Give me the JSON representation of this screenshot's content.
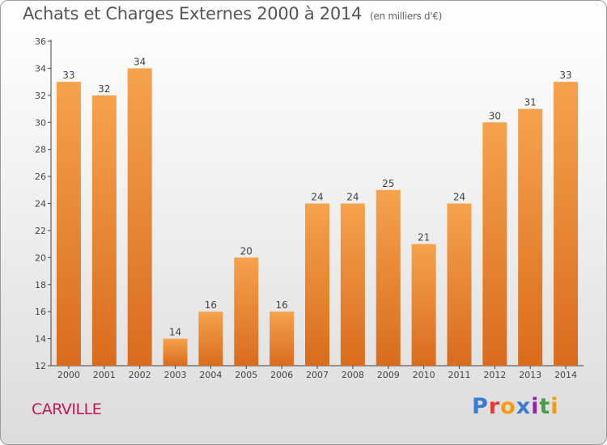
{
  "title": "Achats et Charges Externes 2000 à 2014",
  "unit": "(en milliers d'€)",
  "place": "CARVILLE",
  "logo": {
    "text": "Proxiti",
    "colors": [
      "#3a7bd5",
      "#e53935",
      "#f39c12",
      "#3a7bd5",
      "#8e24aa",
      "#43a047",
      "#f39c12"
    ]
  },
  "colors": {
    "bar_top": "#f6a24d",
    "bar_bottom": "#d96c1c",
    "axis": "#444444",
    "grid": "#cccccc",
    "place": "#c2185b"
  },
  "chart_data": {
    "type": "bar",
    "categories": [
      "2000",
      "2001",
      "2002",
      "2003",
      "2004",
      "2005",
      "2006",
      "2007",
      "2008",
      "2009",
      "2010",
      "2011",
      "2012",
      "2013",
      "2014"
    ],
    "values": [
      33,
      32,
      34,
      14,
      16,
      20,
      16,
      24,
      24,
      25,
      21,
      24,
      30,
      31,
      33
    ],
    "yticks": [
      12,
      14,
      16,
      18,
      20,
      22,
      24,
      26,
      28,
      30,
      32,
      34,
      36
    ],
    "ylim": [
      12,
      36
    ],
    "grid": false
  }
}
